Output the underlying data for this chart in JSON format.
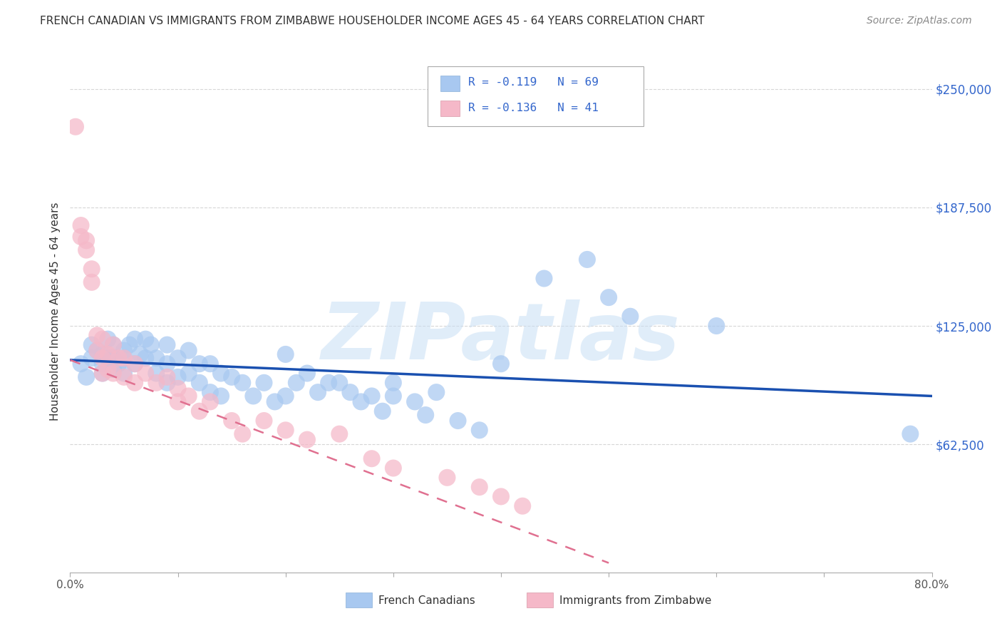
{
  "title": "FRENCH CANADIAN VS IMMIGRANTS FROM ZIMBABWE HOUSEHOLDER INCOME AGES 45 - 64 YEARS CORRELATION CHART",
  "source": "Source: ZipAtlas.com",
  "ylabel": "Householder Income Ages 45 - 64 years",
  "y_tick_labels": [
    "$62,500",
    "$125,000",
    "$187,500",
    "$250,000"
  ],
  "y_tick_values": [
    62500,
    125000,
    187500,
    250000
  ],
  "ylim": [
    -5000,
    270000
  ],
  "xlim": [
    0.0,
    0.8
  ],
  "legend1_text": "R = -0.119   N = 69",
  "legend2_text": "R = -0.136   N = 41",
  "scatter_blue_color": "#a8c8f0",
  "scatter_pink_color": "#f5b8c8",
  "line_blue_color": "#1a50b0",
  "line_pink_color": "#e07090",
  "watermark": "ZIPatlas",
  "watermark_color": "#c8dff5",
  "background_color": "#ffffff",
  "grid_color": "#cccccc",
  "title_color": "#333333",
  "right_tick_color": "#3366cc",
  "blue_x": [
    0.01,
    0.015,
    0.02,
    0.02,
    0.025,
    0.03,
    0.03,
    0.03,
    0.035,
    0.035,
    0.04,
    0.04,
    0.04,
    0.045,
    0.05,
    0.05,
    0.05,
    0.055,
    0.06,
    0.06,
    0.065,
    0.07,
    0.07,
    0.075,
    0.08,
    0.08,
    0.09,
    0.09,
    0.09,
    0.1,
    0.1,
    0.11,
    0.11,
    0.12,
    0.12,
    0.13,
    0.13,
    0.14,
    0.14,
    0.15,
    0.16,
    0.17,
    0.18,
    0.19,
    0.2,
    0.2,
    0.21,
    0.22,
    0.23,
    0.24,
    0.25,
    0.26,
    0.27,
    0.28,
    0.29,
    0.3,
    0.3,
    0.32,
    0.33,
    0.34,
    0.36,
    0.38,
    0.4,
    0.44,
    0.48,
    0.5,
    0.52,
    0.6,
    0.78
  ],
  "blue_y": [
    105000,
    98000,
    115000,
    108000,
    112000,
    110000,
    105000,
    100000,
    118000,
    108000,
    115000,
    108000,
    102000,
    105000,
    112000,
    108000,
    100000,
    115000,
    118000,
    105000,
    110000,
    118000,
    108000,
    115000,
    108000,
    100000,
    115000,
    105000,
    95000,
    108000,
    98000,
    112000,
    100000,
    105000,
    95000,
    105000,
    90000,
    100000,
    88000,
    98000,
    95000,
    88000,
    95000,
    85000,
    110000,
    88000,
    95000,
    100000,
    90000,
    95000,
    95000,
    90000,
    85000,
    88000,
    80000,
    95000,
    88000,
    85000,
    78000,
    90000,
    75000,
    70000,
    105000,
    150000,
    160000,
    140000,
    130000,
    125000,
    68000
  ],
  "pink_x": [
    0.005,
    0.01,
    0.01,
    0.015,
    0.015,
    0.02,
    0.02,
    0.025,
    0.025,
    0.03,
    0.03,
    0.03,
    0.035,
    0.035,
    0.04,
    0.04,
    0.045,
    0.05,
    0.05,
    0.06,
    0.06,
    0.07,
    0.08,
    0.09,
    0.1,
    0.1,
    0.11,
    0.12,
    0.13,
    0.15,
    0.16,
    0.18,
    0.2,
    0.22,
    0.25,
    0.28,
    0.3,
    0.35,
    0.38,
    0.4,
    0.42
  ],
  "pink_y": [
    230000,
    178000,
    172000,
    170000,
    165000,
    155000,
    148000,
    120000,
    112000,
    118000,
    108000,
    100000,
    110000,
    102000,
    115000,
    100000,
    108000,
    108000,
    98000,
    105000,
    95000,
    100000,
    95000,
    98000,
    92000,
    85000,
    88000,
    80000,
    85000,
    75000,
    68000,
    75000,
    70000,
    65000,
    68000,
    55000,
    50000,
    45000,
    40000,
    35000,
    30000
  ],
  "blue_line_x0": 0.0,
  "blue_line_x1": 0.8,
  "blue_line_y0": 107000,
  "blue_line_y1": 88000,
  "pink_line_x0": 0.0,
  "pink_line_x1": 0.5,
  "pink_line_y0": 107000,
  "pink_line_y1": 0
}
